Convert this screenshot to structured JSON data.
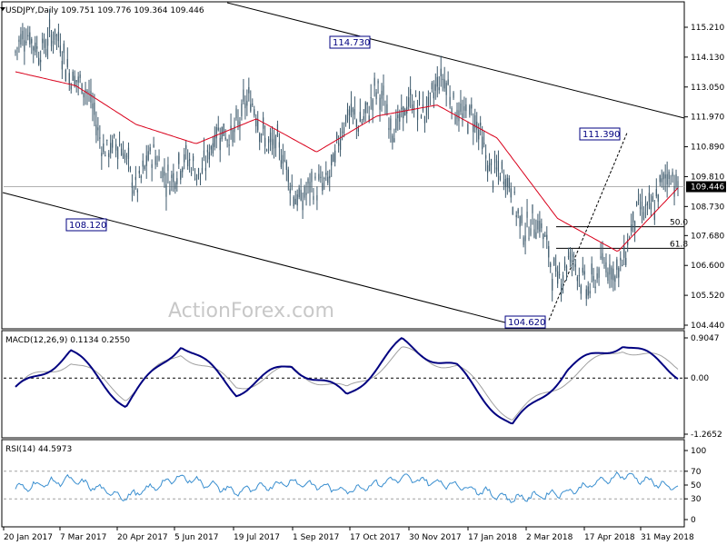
{
  "header": {
    "symbol_line": "USDJPY,Daily  109.751 109.776 109.364 109.446"
  },
  "watermark": "ActionForex.com",
  "colors": {
    "candle": "#3d5a6c",
    "ma": "#d9001b",
    "macd": "#000080",
    "signal": "#a0a0a0",
    "rsi": "#3a8fd0",
    "channel": "#000000",
    "label_border": "#000080"
  },
  "chart_data": [
    {
      "type": "line",
      "title": "USDJPY,Daily",
      "ohlc_last": {
        "open": 109.751,
        "high": 109.776,
        "low": 109.364,
        "close": 109.446
      },
      "ylim": [
        104.44,
        115.21
      ],
      "yticks": [
        "115.210",
        "114.130",
        "113.050",
        "111.970",
        "110.890",
        "109.810",
        "108.730",
        "107.680",
        "106.600",
        "105.520",
        "104.440"
      ],
      "current_price_label": "109.446",
      "x_labels": [
        "20 Jan 2017",
        "7 Mar 2017",
        "20 Apr 2017",
        "5 Jun 2017",
        "19 Jul 2017",
        "1 Sep 2017",
        "17 Oct 2017",
        "30 Nov 2017",
        "17 Jan 2018",
        "2 Mar 2018",
        "17 Apr 2018",
        "31 May 2018"
      ],
      "price_close_path": [
        [
          "20 Jan 2017",
          114.3
        ],
        [
          "7 Mar 2017",
          114.0
        ],
        [
          "20 Apr 2017",
          109.2
        ],
        [
          "5 Jun 2017",
          110.9
        ],
        [
          "19 Jul 2017",
          111.6
        ],
        [
          "1 Sep 2017",
          109.3
        ],
        [
          "17 Oct 2017",
          112.6
        ],
        [
          "30 Nov 2017",
          112.6
        ],
        [
          "17 Jan 2018",
          110.7
        ],
        [
          "2 Mar 2018",
          105.8
        ],
        [
          "17 Apr 2018",
          107.2
        ],
        [
          "31 May 2018",
          109.4
        ]
      ],
      "ma_path": [
        [
          "20 Jan 2017",
          113.6
        ],
        [
          "7 Mar 2017",
          113.1
        ],
        [
          "20 Apr 2017",
          111.7
        ],
        [
          "5 Jun 2017",
          111.0
        ],
        [
          "19 Jul 2017",
          111.9
        ],
        [
          "1 Sep 2017",
          110.7
        ],
        [
          "17 Oct 2017",
          112.0
        ],
        [
          "30 Nov 2017",
          112.4
        ],
        [
          "17 Jan 2018",
          111.2
        ],
        [
          "2 Mar 2018",
          108.3
        ],
        [
          "17 Apr 2018",
          107.1
        ],
        [
          "31 May 2018",
          109.4
        ]
      ],
      "annotations": [
        {
          "text": "114.730",
          "date": "17 Oct 2017",
          "price": 114.73
        },
        {
          "text": "108.120",
          "date": "20 Apr 2017",
          "price": 108.12
        },
        {
          "text": "111.390",
          "date": "17 Apr 2018",
          "price": 111.39
        },
        {
          "text": "104.620",
          "date": "2 Mar 2018",
          "price": 104.62
        }
      ],
      "retracements": [
        {
          "label": "50.0",
          "price": 108.0
        },
        {
          "label": "61.8",
          "price": 107.22
        }
      ]
    },
    {
      "type": "line",
      "title": "MACD(12,26,9) 0.1134 0.2550",
      "ylim": [
        -1.2652,
        0.9047
      ],
      "yticks": [
        "0.9047",
        "0.00",
        "-1.2652"
      ],
      "series": [
        {
          "name": "MACD",
          "values": [
            -0.3,
            0.6,
            -0.6,
            0.8,
            -0.3,
            0.3,
            -0.4,
            0.8,
            0.2,
            -1.1,
            0.2,
            0.8,
            0.1
          ]
        },
        {
          "name": "Signal",
          "values": [
            -0.2,
            0.4,
            -0.4,
            0.6,
            -0.2,
            0.2,
            -0.3,
            0.6,
            0.25,
            -0.9,
            0.0,
            0.7,
            0.25
          ]
        }
      ]
    },
    {
      "type": "line",
      "title": "RSI(14) 44.5973",
      "ylim": [
        0,
        100
      ],
      "yticks": [
        "100",
        "70",
        "50",
        "30",
        "0"
      ],
      "series": [
        {
          "name": "RSI",
          "values": [
            45,
            58,
            32,
            62,
            40,
            55,
            42,
            60,
            50,
            30,
            40,
            65,
            44.6
          ]
        }
      ]
    }
  ]
}
